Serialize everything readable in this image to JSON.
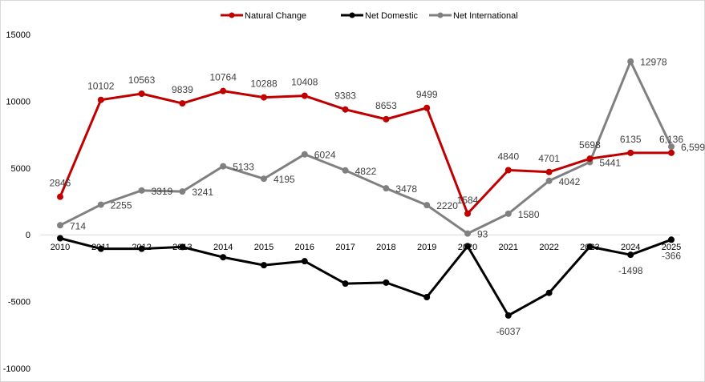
{
  "chart_data": {
    "type": "line",
    "title": "",
    "xlabel": "",
    "ylabel": "",
    "categories": [
      "2010",
      "2011",
      "2012",
      "2013",
      "2014",
      "2015",
      "2016",
      "2017",
      "2018",
      "2019",
      "2020",
      "2021",
      "2022",
      "2023",
      "2024",
      "2025"
    ],
    "ylim": [
      -10000,
      15000
    ],
    "yticks": [
      "-10000",
      "-5000",
      "0",
      "5000",
      "10000",
      "15000"
    ],
    "grid": false,
    "legend": "top",
    "series": [
      {
        "name": "Natural Change",
        "color": "#C00000",
        "values": [
          2846,
          10102,
          10563,
          9839,
          10764,
          10288,
          10408,
          9383,
          8653,
          9499,
          1584,
          4840,
          4701,
          5698,
          6135,
          6136
        ],
        "labels": [
          "2846",
          "10102",
          "10563",
          "9839",
          "10764",
          "10288",
          "10408",
          "9383",
          "8653",
          "9499",
          "1584",
          "4840",
          "4701",
          "5698",
          "6135",
          "6,136"
        ]
      },
      {
        "name": "Net Domestic",
        "color": "#000000",
        "values": [
          -257,
          -1047,
          -1047,
          -909,
          -1680,
          -2273,
          -1976,
          -3656,
          -3577,
          -4664,
          -850,
          -6037,
          -4348,
          -889,
          -1498,
          -366
        ],
        "labels": [
          null,
          null,
          null,
          null,
          null,
          null,
          null,
          null,
          null,
          null,
          null,
          "-6037",
          null,
          null,
          "-1498",
          "-366"
        ]
      },
      {
        "name": "Net International",
        "color": "#808080",
        "values": [
          714,
          2255,
          3319,
          3241,
          5133,
          4195,
          6024,
          4822,
          3478,
          2220,
          93,
          1580,
          4042,
          5441,
          12978,
          6599
        ],
        "labels": [
          "714",
          "2255",
          "3319",
          "3241",
          "5133",
          "4195",
          "6024",
          "4822",
          "3478",
          "2220",
          "93",
          "1580",
          "4042",
          "5441",
          "12978",
          "6,599"
        ]
      }
    ]
  }
}
